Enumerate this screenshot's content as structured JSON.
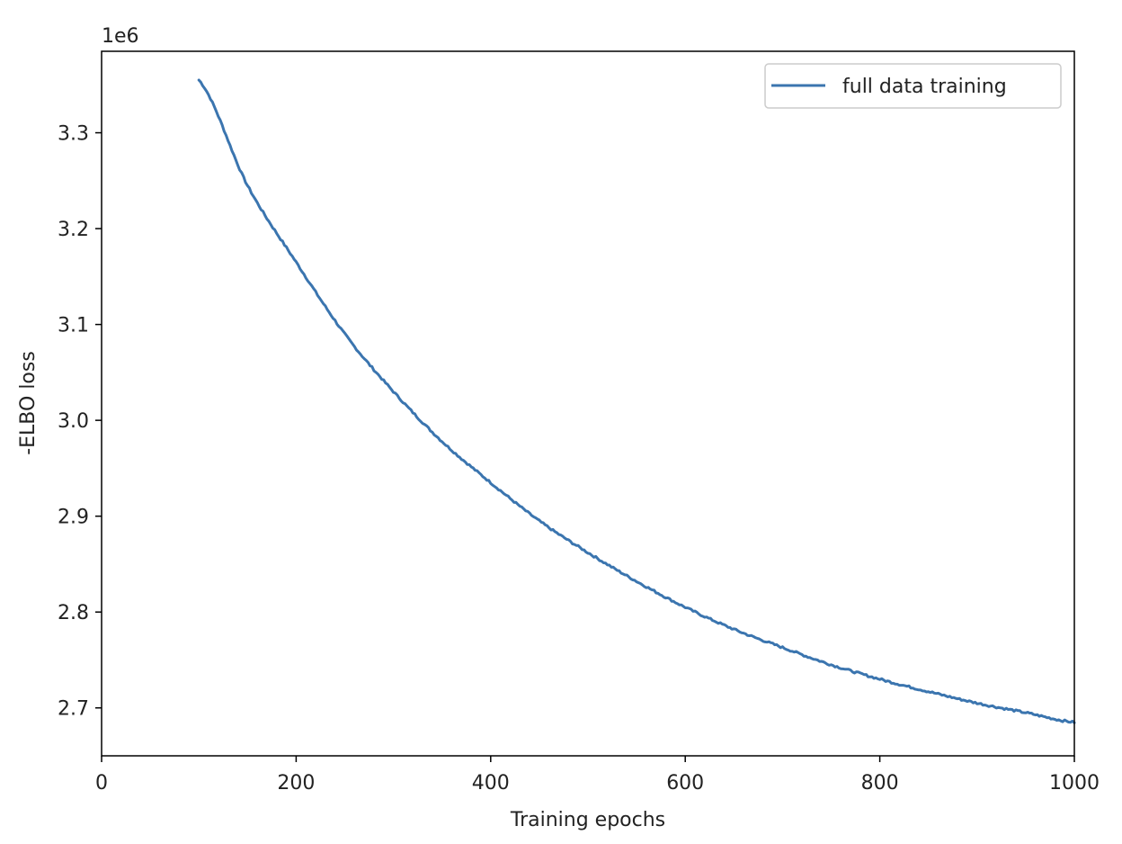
{
  "chart_data": {
    "type": "line",
    "title": "",
    "xlabel": "Training epochs",
    "ylabel": "-ELBO loss",
    "y_offset_label": "1e6",
    "y_multiplier": 1000000,
    "xlim": [
      0,
      1000
    ],
    "ylim": [
      2650000,
      3385000
    ],
    "x_ticks": [
      0,
      200,
      400,
      600,
      800,
      1000
    ],
    "x_tick_labels": [
      "0",
      "200",
      "400",
      "600",
      "800",
      "1000"
    ],
    "y_ticks": [
      2700000,
      2800000,
      2900000,
      3000000,
      3100000,
      3200000,
      3300000
    ],
    "y_tick_labels": [
      "2.7",
      "2.8",
      "2.9",
      "3.0",
      "3.1",
      "3.2",
      "3.3"
    ],
    "grid": false,
    "legend_position": "top-right",
    "series": [
      {
        "name": "full data training",
        "color": "#3b75af",
        "x": [
          100,
          150,
          200,
          250,
          300,
          350,
          400,
          450,
          500,
          550,
          600,
          650,
          700,
          750,
          800,
          850,
          900,
          950,
          1000
        ],
        "y": [
          3355000,
          3245000,
          3165000,
          3090000,
          3030000,
          2978000,
          2935000,
          2895000,
          2862000,
          2832000,
          2805000,
          2782000,
          2763000,
          2745000,
          2730000,
          2717000,
          2705000,
          2695000,
          2685000
        ]
      }
    ]
  }
}
